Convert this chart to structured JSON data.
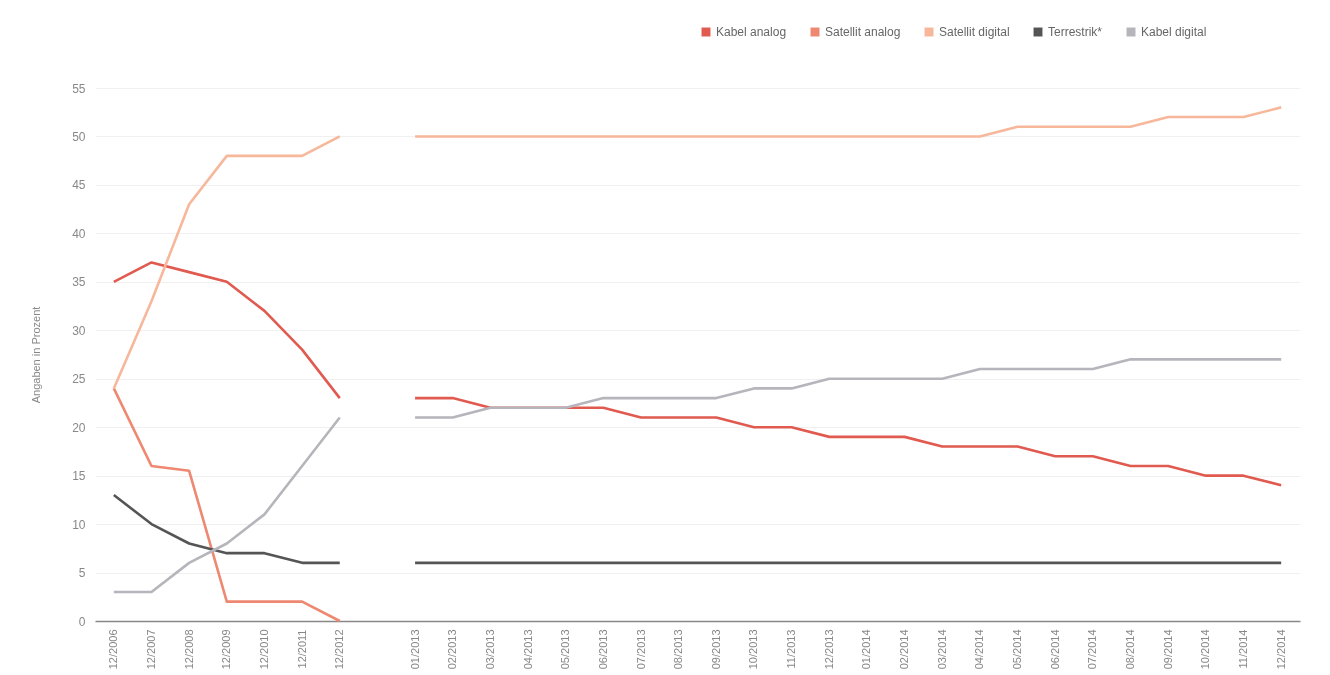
{
  "chart_data": {
    "type": "line",
    "ylabel": "Angaben in Prozent",
    "categories": [
      "12/2006",
      "12/2007",
      "12/2008",
      "12/2009",
      "12/2010",
      "12/2011",
      "12/2012",
      null,
      "01/2013",
      "02/2013",
      "03/2013",
      "04/2013",
      "05/2013",
      "06/2013",
      "07/2013",
      "08/2013",
      "09/2013",
      "10/2013",
      "11/2013",
      "12/2013",
      "01/2014",
      "02/2014",
      "03/2014",
      "04/2014",
      "05/2014",
      "06/2014",
      "07/2014",
      "08/2014",
      "09/2014",
      "10/2014",
      "11/2014",
      "12/2014"
    ],
    "series": [
      {
        "name": "Kabel analog",
        "color": "#e05a50",
        "values": [
          35,
          37,
          36,
          35,
          32,
          28,
          23,
          null,
          23,
          23,
          22,
          22,
          22,
          22,
          21,
          21,
          21,
          20,
          20,
          19,
          19,
          19,
          18,
          18,
          18,
          17,
          17,
          16,
          16,
          15,
          15,
          14
        ]
      },
      {
        "name": "Satellit analog",
        "color": "#ee8870",
        "values": [
          24,
          16,
          15.5,
          2,
          2,
          2,
          0,
          null,
          null,
          null,
          null,
          null,
          null,
          null,
          null,
          null,
          null,
          null,
          null,
          null,
          null,
          null,
          null,
          null,
          null,
          null,
          null,
          null,
          null,
          null,
          null,
          null
        ]
      },
      {
        "name": "Satellit digital",
        "color": "#f7b79a",
        "values": [
          24,
          33,
          43,
          48,
          48,
          48,
          50,
          null,
          50,
          50,
          50,
          50,
          50,
          50,
          50,
          50,
          50,
          50,
          50,
          50,
          50,
          50,
          50,
          50,
          51,
          51,
          51,
          51,
          52,
          52,
          52,
          53
        ]
      },
      {
        "name": "Terrestrik*",
        "color": "#555555",
        "values": [
          13,
          10,
          8,
          7,
          7,
          6,
          6,
          null,
          6,
          6,
          6,
          6,
          6,
          6,
          6,
          6,
          6,
          6,
          6,
          6,
          6,
          6,
          6,
          6,
          6,
          6,
          6,
          6,
          6,
          6,
          6,
          6
        ]
      },
      {
        "name": "Kabel digital",
        "color": "#b5b5bb",
        "values": [
          3,
          3,
          6,
          8,
          11,
          16,
          21,
          null,
          21,
          21,
          22,
          22,
          22,
          23,
          23,
          23,
          23,
          24,
          24,
          25,
          25,
          25,
          25,
          26,
          26,
          26,
          26,
          27,
          27,
          27,
          27,
          27
        ]
      }
    ],
    "ylim": [
      0,
      55
    ],
    "yticks": [
      0,
      5,
      10,
      15,
      20,
      25,
      30,
      35,
      40,
      45,
      50,
      55
    ],
    "grid": "y",
    "legend": "top right"
  }
}
